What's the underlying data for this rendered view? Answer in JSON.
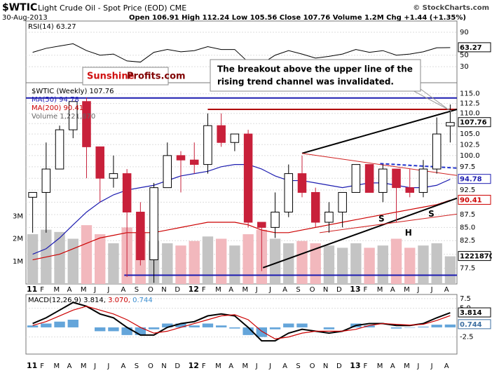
{
  "header": {
    "symbol": "$WTIC",
    "title": "Light Crude Oil - Spot Price (EOD) CME",
    "date": "30-Aug-2013",
    "quote": "Open 106.91 High 112.24 Low 105.56 Close 107.76 Volume 1.2M Chg +1.44 (+1.35%)",
    "credit": "© StockCharts.com",
    "logo": [
      "Sunshine",
      "Profits.com"
    ],
    "note": [
      "The breakout above the upper line of the",
      "rising trend channel was invalidated."
    ]
  },
  "chart_data": [
    {
      "type": "line",
      "label": "RSI(14) 63.27",
      "color": "#000000",
      "value_label": "63.27",
      "values": [
        55,
        62,
        66,
        70,
        58,
        50,
        52,
        40,
        38,
        55,
        60,
        56,
        58,
        65,
        60,
        60,
        38,
        35,
        50,
        58,
        52,
        45,
        48,
        52,
        60,
        55,
        58,
        50,
        52,
        56,
        63,
        63.27
      ],
      "ylim": [
        2,
        109.6
      ],
      "yticks": [
        90,
        50,
        30
      ],
      "grid": true
    },
    {
      "type": "candlestick",
      "label": "$WTIC (Weekly) 107.76",
      "value_label": "107.76",
      "log_scale": true,
      "grid": true,
      "categories": [
        "11",
        "F",
        "M",
        "A",
        "M",
        "J",
        "J",
        "A",
        "S",
        "O",
        "N",
        "D",
        "12",
        "F",
        "M",
        "A",
        "M",
        "J",
        "J",
        "A",
        "S",
        "O",
        "N",
        "D",
        "13",
        "F",
        "M",
        "A",
        "M",
        "J",
        "J",
        "A"
      ],
      "open": [
        91,
        92,
        97,
        106,
        113,
        102,
        95,
        96,
        88,
        79,
        93,
        100,
        99,
        98,
        107,
        103,
        105,
        86,
        85,
        88,
        96,
        92,
        86,
        88,
        92,
        98,
        92,
        97,
        93,
        92,
        97,
        106.91
      ],
      "high": [
        92,
        103,
        107,
        113,
        114,
        102,
        100,
        97,
        90,
        94,
        103,
        101,
        103,
        110,
        110,
        105,
        106,
        86,
        92,
        98,
        100,
        93,
        90,
        92,
        98,
        98,
        98,
        97,
        97,
        99,
        109,
        112.24
      ],
      "low": [
        84,
        84,
        97,
        104,
        95,
        90,
        93,
        76,
        78,
        75,
        93,
        92,
        96,
        96,
        102,
        101,
        85,
        77,
        83,
        87,
        91,
        85,
        84,
        85,
        92,
        92,
        90,
        86,
        91,
        91,
        96,
        103
      ],
      "close": [
        92,
        97,
        106,
        113,
        102,
        95,
        96,
        88,
        79,
        93,
        100,
        99,
        98,
        107,
        103,
        105,
        86,
        85,
        88,
        96,
        92,
        86,
        88,
        92,
        98,
        92,
        97,
        93,
        92,
        97,
        105,
        107.76
      ],
      "series": [
        {
          "name": "MA(50) 94.78",
          "color": "#1c1cb0",
          "value_label": "94.78",
          "values": [
            80,
            81,
            83,
            85.5,
            88,
            90,
            91.5,
            92.5,
            93,
            93.5,
            94.5,
            95.5,
            96,
            96.5,
            97.5,
            98,
            98,
            97,
            95.5,
            94.5,
            94.5,
            94,
            93.5,
            93,
            93.5,
            94,
            94,
            93.5,
            93,
            93,
            93.5,
            94.78
          ]
        },
        {
          "name": "MA(200) 90.41",
          "color": "#cc0000",
          "value_label": "90.41",
          "values": [
            79,
            79.5,
            80,
            81,
            82,
            83,
            83.5,
            84,
            84,
            84,
            84.5,
            85,
            85.5,
            86,
            86,
            86,
            85.5,
            84.5,
            84,
            84,
            84.5,
            85,
            85.5,
            86,
            86.5,
            87,
            87.5,
            88,
            88.5,
            89,
            89.5,
            90.41
          ]
        }
      ],
      "volume": {
        "name": "Volume 1,221,870",
        "value_label": "1221870",
        "values": [
          2200000,
          2400000,
          2300000,
          2000000,
          2600000,
          2200000,
          1800000,
          2500000,
          2300000,
          1900000,
          1800000,
          1700000,
          1900000,
          2100000,
          2000000,
          1700000,
          2200000,
          2400000,
          2000000,
          1800000,
          1900000,
          1800000,
          1700000,
          1600000,
          1800000,
          1600000,
          1700000,
          2000000,
          1600000,
          1700000,
          1800000,
          1221870
        ],
        "ylim": [
          0,
          8900000
        ],
        "yticks": [
          {
            "value": 1000000,
            "label": "1M"
          },
          {
            "value": 2000000,
            "label": "2M"
          },
          {
            "value": 3000000,
            "label": "3M"
          }
        ]
      },
      "ylim": [
        74.8,
        117.9
      ],
      "yticks": [
        {
          "value": 115,
          "label": "115.0"
        },
        112.5,
        {
          "value": 110,
          "label": "110.0"
        },
        107.5,
        {
          "value": 105,
          "label": "105.0"
        },
        102.5,
        {
          "value": 100,
          "label": "100.0"
        },
        97.5,
        {
          "value": 95,
          "label": "95.0"
        },
        92.5,
        {
          "value": 90,
          "label": "90.0"
        },
        87.5,
        {
          "value": 85,
          "label": "85.0"
        },
        82.5,
        {
          "value": 80,
          "label": "80.0"
        },
        77.5
      ],
      "xlim": [
        0,
        32
      ],
      "levels": [
        {
          "value": 113.9,
          "from": 0,
          "color": "#1c1cb0"
        },
        {
          "value": 111,
          "from": 13.5,
          "color": "#b00000"
        },
        {
          "value": 76.3,
          "from": 7.3,
          "color": "#1c1cb0"
        }
      ],
      "trendlines": [
        {
          "x": [
            20.5,
            32
          ],
          "y": [
            100.5,
            111
          ],
          "color": "#000000",
          "width": 2
        },
        {
          "x": [
            17.6,
            32
          ],
          "y": [
            77.6,
            90.8
          ],
          "color": "#000000",
          "width": 2
        },
        {
          "x": [
            20.5,
            32
          ],
          "y": [
            100.5,
            95.6
          ],
          "color": "#d02020",
          "width": 1
        },
        {
          "x": [
            21.8,
            32
          ],
          "y": [
            84,
            87.6
          ],
          "color": "#d02020",
          "width": 1
        },
        {
          "x": [
            26.3,
            32
          ],
          "y": [
            98.2,
            97.2
          ],
          "color": "#2233cc",
          "width": 2,
          "dashed": true
        }
      ],
      "annotations": [
        {
          "text": "S",
          "x": 26.4,
          "y": 86.6
        },
        {
          "text": "H",
          "x": 28.4,
          "y": 83.9
        },
        {
          "text": "S",
          "x": 30.1,
          "y": 87.6
        }
      ]
    },
    {
      "type": "macd",
      "label": "MACD(12,26,9)",
      "categories": [
        "11",
        "F",
        "M",
        "A",
        "M",
        "J",
        "J",
        "A",
        "S",
        "O",
        "N",
        "D",
        "12",
        "F",
        "M",
        "A",
        "M",
        "J",
        "J",
        "A",
        "S",
        "O",
        "N",
        "D",
        "13",
        "F",
        "M",
        "A",
        "M",
        "J",
        "J",
        "A"
      ],
      "series": [
        {
          "name": "3.814,",
          "color": "#000000",
          "value_label": "3.814",
          "values": [
            1,
            2.5,
            4.5,
            6.5,
            5.5,
            3.5,
            2.5,
            0,
            -2,
            -2,
            0,
            1,
            1.5,
            3,
            3.5,
            3,
            0,
            -3.5,
            -3.5,
            -1.5,
            -0.5,
            -1,
            -1.5,
            -1,
            0.5,
            1,
            1,
            0.5,
            0.5,
            1,
            2.5,
            3.814
          ]
        },
        {
          "name": "3.070,",
          "color": "#cc0000",
          "values": [
            0.5,
            1.5,
            3,
            4.5,
            5.5,
            4.5,
            3.5,
            2,
            0,
            -1.5,
            -1,
            0,
            1,
            2,
            3,
            3.3,
            2,
            -1,
            -3,
            -2.5,
            -1.5,
            -1,
            -1,
            -1,
            -0.5,
            0.5,
            1,
            0.8,
            0.6,
            0.8,
            1.8,
            3.07
          ]
        },
        {
          "name": "0.744",
          "color": "#3d8fd1",
          "value_label": "0.744",
          "histogram": true,
          "values": [
            0.5,
            1,
            1.5,
            2,
            0,
            -1,
            -1,
            -2,
            -2,
            -0.5,
            1,
            1,
            0.5,
            1,
            0.5,
            -0.3,
            -2,
            -2.5,
            -0.5,
            1,
            1,
            0,
            -0.5,
            0,
            1,
            0.5,
            0,
            -0.3,
            -0.1,
            0.2,
            0.7,
            0.744
          ]
        }
      ],
      "ylim": [
        -6.96,
        8.58
      ],
      "yticks": [
        {
          "value": 7.5,
          "label": "7.5"
        },
        {
          "value": 5,
          "label": "5.0"
        },
        -2.5
      ],
      "grid": true
    }
  ]
}
